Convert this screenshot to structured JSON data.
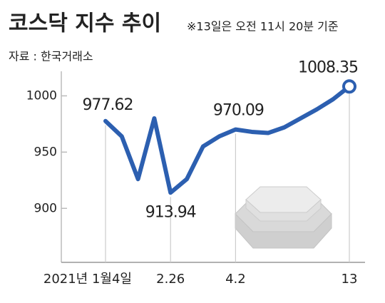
{
  "chart_data": {
    "type": "line",
    "title": "코스닥 지수 추이",
    "subtitle": "※13일은 오전 11시 20분 기준",
    "source": "자료 : 한국거래소",
    "categories": [
      "2021년 1월4일",
      null,
      null,
      null,
      "2.26",
      null,
      null,
      null,
      "4.2",
      null,
      null,
      null,
      null,
      null,
      null,
      "13"
    ],
    "series": [
      {
        "name": "코스닥",
        "color": "#2c5fb0",
        "values": [
          977.62,
          964,
          926,
          980,
          913.94,
          926,
          955,
          964,
          970.09,
          968,
          967,
          972,
          980,
          988,
          997,
          1008.35
        ],
        "value_labels": [
          "977.62",
          null,
          null,
          null,
          "913.94",
          null,
          null,
          null,
          "970.09",
          null,
          null,
          null,
          null,
          null,
          null,
          "1008.35"
        ]
      }
    ],
    "ylim": [
      852,
      1025
    ],
    "yticks": [
      900,
      950,
      1000
    ]
  }
}
